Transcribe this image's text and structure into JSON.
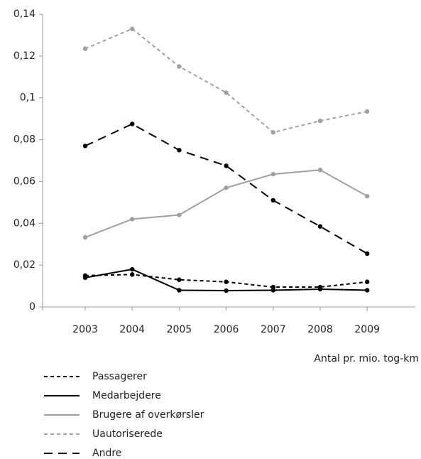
{
  "chart_data": {
    "type": "line",
    "x_label": "Antal pr. mio. tog-km",
    "categories": [
      "2003",
      "2004",
      "2005",
      "2006",
      "2007",
      "2008",
      "2009"
    ],
    "ylim": [
      0,
      0.14
    ],
    "yticks": [
      0,
      {
        "value": 0.02,
        "label": "0,02"
      },
      {
        "value": 0.04,
        "label": "0,04"
      },
      {
        "value": 0.06,
        "label": "0,06"
      },
      {
        "value": 0.08,
        "label": "0,08"
      },
      {
        "value": 0.1,
        "label": "0,1"
      },
      {
        "value": 0.12,
        "label": "0,12"
      },
      {
        "value": 0.14,
        "label": "0,14"
      }
    ],
    "series": [
      {
        "name": "Passagerer",
        "color": "#000000",
        "dash": "5,4",
        "values": [
          0.015,
          0.0155,
          0.013,
          0.012,
          0.0095,
          0.0095,
          0.012
        ]
      },
      {
        "name": "Medarbejdere",
        "color": "#000000",
        "dash": "none",
        "values": [
          0.014,
          0.018,
          0.008,
          0.0078,
          0.008,
          0.0085,
          0.008
        ]
      },
      {
        "name": "Brugere af overkørsler",
        "color": "#a0a0a0",
        "dash": "none",
        "values": [
          0.0333,
          0.042,
          0.044,
          0.057,
          0.0635,
          0.0655,
          0.053
        ]
      },
      {
        "name": "Uautoriserede",
        "color": "#a0a0a0",
        "dash": "5,4",
        "values": [
          0.1235,
          0.133,
          0.115,
          0.1025,
          0.0835,
          0.089,
          0.0935
        ]
      },
      {
        "name": "Andre",
        "color": "#000000",
        "dash": "12,8",
        "values": [
          0.077,
          0.0875,
          0.075,
          0.0675,
          0.051,
          0.0385,
          0.0255
        ]
      }
    ]
  }
}
